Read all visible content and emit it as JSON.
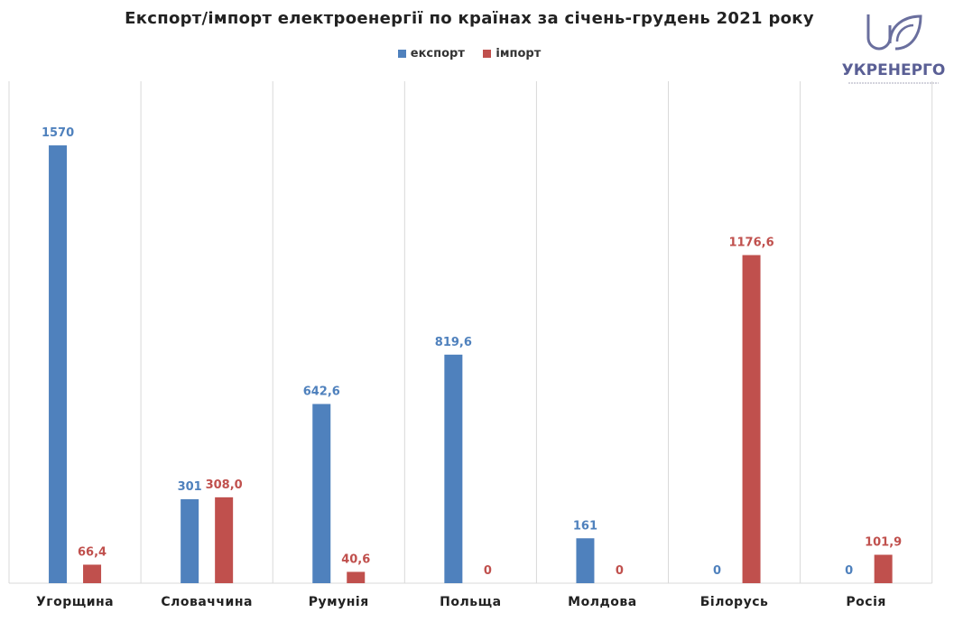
{
  "chart_data": {
    "type": "bar",
    "title": "Експорт/імпорт електроенергії по країнах за січень-грудень 2021 року",
    "categories": [
      "Угорщина",
      "Словаччина",
      "Румунія",
      "Польща",
      "Молдова",
      "Білорусь",
      "Росія"
    ],
    "series": [
      {
        "name": "експорт",
        "color": "#4f81bd",
        "values": [
          1570,
          301,
          642.6,
          819.6,
          161,
          0,
          0
        ],
        "labels": [
          "1570",
          "301",
          "642,6",
          "819,6",
          "161",
          "0",
          "0"
        ]
      },
      {
        "name": "імпорт",
        "color": "#c0504d",
        "values": [
          66.4,
          308.0,
          40.6,
          0,
          0,
          1176.6,
          101.9
        ],
        "labels": [
          "66,4",
          "308,0",
          "40,6",
          "0",
          "0",
          "1176,6",
          "101,9"
        ]
      }
    ],
    "ylim": [
      0,
      1800
    ],
    "grid": "vertical separators",
    "legend": "top"
  },
  "logo": {
    "text": "УКРЕНЕРГО"
  }
}
